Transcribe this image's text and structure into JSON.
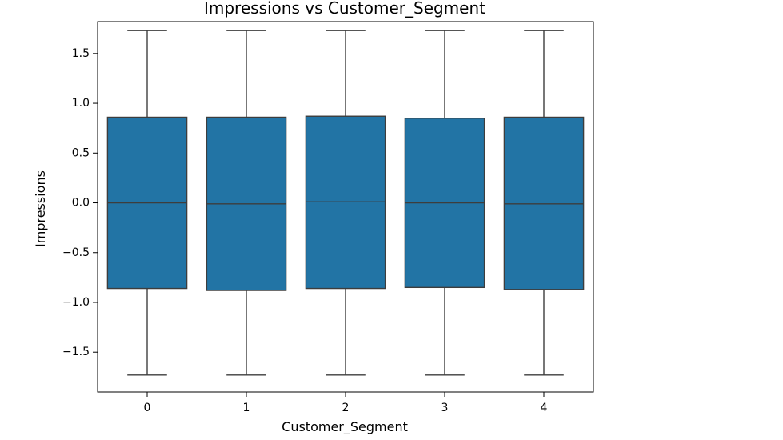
{
  "chart_data": {
    "type": "box",
    "title": "Impressions vs Customer_Segment",
    "xlabel": "Customer_Segment",
    "ylabel": "Impressions",
    "ylim": [
      -1.9,
      1.82
    ],
    "yticks": [
      -1.5,
      -1.0,
      -0.5,
      0.0,
      0.5,
      1.0,
      1.5
    ],
    "ytick_labels": [
      "−1.5",
      "−1.0",
      "−0.5",
      "0.0",
      "0.5",
      "1.0",
      "1.5"
    ],
    "categories": [
      "0",
      "1",
      "2",
      "3",
      "4"
    ],
    "boxes": [
      {
        "category": "0",
        "whisker_low": -1.73,
        "q1": -0.86,
        "median": 0.0,
        "q3": 0.86,
        "whisker_high": 1.73
      },
      {
        "category": "1",
        "whisker_low": -1.73,
        "q1": -0.88,
        "median": -0.01,
        "q3": 0.86,
        "whisker_high": 1.73
      },
      {
        "category": "2",
        "whisker_low": -1.73,
        "q1": -0.86,
        "median": 0.01,
        "q3": 0.87,
        "whisker_high": 1.73
      },
      {
        "category": "3",
        "whisker_low": -1.73,
        "q1": -0.85,
        "median": 0.0,
        "q3": 0.85,
        "whisker_high": 1.73
      },
      {
        "category": "4",
        "whisker_low": -1.73,
        "q1": -0.87,
        "median": -0.01,
        "q3": 0.86,
        "whisker_high": 1.73
      }
    ],
    "box_color": "#2274a5",
    "line_color": "#3d3d3d",
    "grid": false,
    "legend": "none"
  }
}
